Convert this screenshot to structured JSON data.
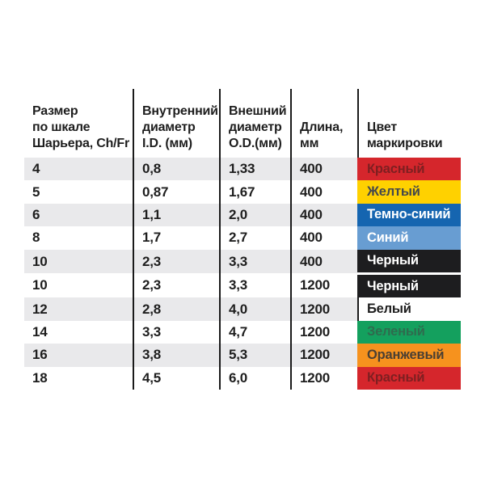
{
  "table": {
    "headers": [
      "Размер\nпо шкале\nШарьера, Ch/Fr",
      "Внутренний\nдиаметр\nI.D. (мм)",
      "Внешний\nдиаметр\nO.D.(мм)",
      "Длина,\nмм",
      "Цвет\nмаркировки"
    ],
    "rows": [
      {
        "size": "4",
        "inner_diameter": "0,8",
        "outer_diameter": "1,33",
        "length": "400",
        "color_name": "Красный",
        "swatch_bg": "#d5262c",
        "swatch_fg": "#7e1f21",
        "zebra": true,
        "white_divider_top": false,
        "show_rule": false
      },
      {
        "size": "5",
        "inner_diameter": "0,87",
        "outer_diameter": "1,67",
        "length": "400",
        "color_name": "Желтый",
        "swatch_bg": "#ffd100",
        "swatch_fg": "#44484c",
        "zebra": false,
        "white_divider_top": false,
        "show_rule": false
      },
      {
        "size": "6",
        "inner_diameter": "1,1",
        "outer_diameter": "2,0",
        "length": "400",
        "color_name": "Темно-синий",
        "swatch_bg": "#1565b0",
        "swatch_fg": "#ffffff",
        "zebra": true,
        "white_divider_top": false,
        "show_rule": false
      },
      {
        "size": "8",
        "inner_diameter": "1,7",
        "outer_diameter": "2,7",
        "length": "400",
        "color_name": "Синий",
        "swatch_bg": "#689dd2",
        "swatch_fg": "#ffffff",
        "zebra": false,
        "white_divider_top": false,
        "show_rule": false
      },
      {
        "size": "10",
        "inner_diameter": "2,3",
        "outer_diameter": "3,3",
        "length": "400",
        "color_name": "Черный",
        "swatch_bg": "#1d1d1f",
        "swatch_fg": "#ffffff",
        "zebra": true,
        "white_divider_top": false,
        "show_rule": false
      },
      {
        "size": "10",
        "inner_diameter": "2,3",
        "outer_diameter": "3,3",
        "length": "1200",
        "color_name": "Черный",
        "swatch_bg": "#1d1d1f",
        "swatch_fg": "#ffffff",
        "zebra": false,
        "white_divider_top": true,
        "show_rule": false
      },
      {
        "size": "12",
        "inner_diameter": "2,8",
        "outer_diameter": "4,0",
        "length": "1200",
        "color_name": "Белый",
        "swatch_bg": "#ffffff",
        "swatch_fg": "#1e1e1e",
        "zebra": true,
        "white_divider_top": false,
        "show_rule": true
      },
      {
        "size": "14",
        "inner_diameter": "3,3",
        "outer_diameter": "4,7",
        "length": "1200",
        "color_name": "Зеленый",
        "swatch_bg": "#14a05e",
        "swatch_fg": "#2f6b4e",
        "zebra": false,
        "white_divider_top": false,
        "show_rule": false
      },
      {
        "size": "16",
        "inner_diameter": "3,8",
        "outer_diameter": "5,3",
        "length": "1200",
        "color_name": "Оранжевый",
        "swatch_bg": "#f6921e",
        "swatch_fg": "#4a3f33",
        "zebra": true,
        "white_divider_top": false,
        "show_rule": false
      },
      {
        "size": "18",
        "inner_diameter": "4,5",
        "outer_diameter": "6,0",
        "length": "1200",
        "color_name": "Красный",
        "swatch_bg": "#d5262c",
        "swatch_fg": "#7e1f21",
        "zebra": false,
        "white_divider_top": false,
        "show_rule": false
      }
    ],
    "colors": {
      "zebra_bg": "#e9e9eb",
      "rule": "#1a1a1a",
      "body_text": "#1e1e1e",
      "page_bg": "#ffffff"
    }
  }
}
